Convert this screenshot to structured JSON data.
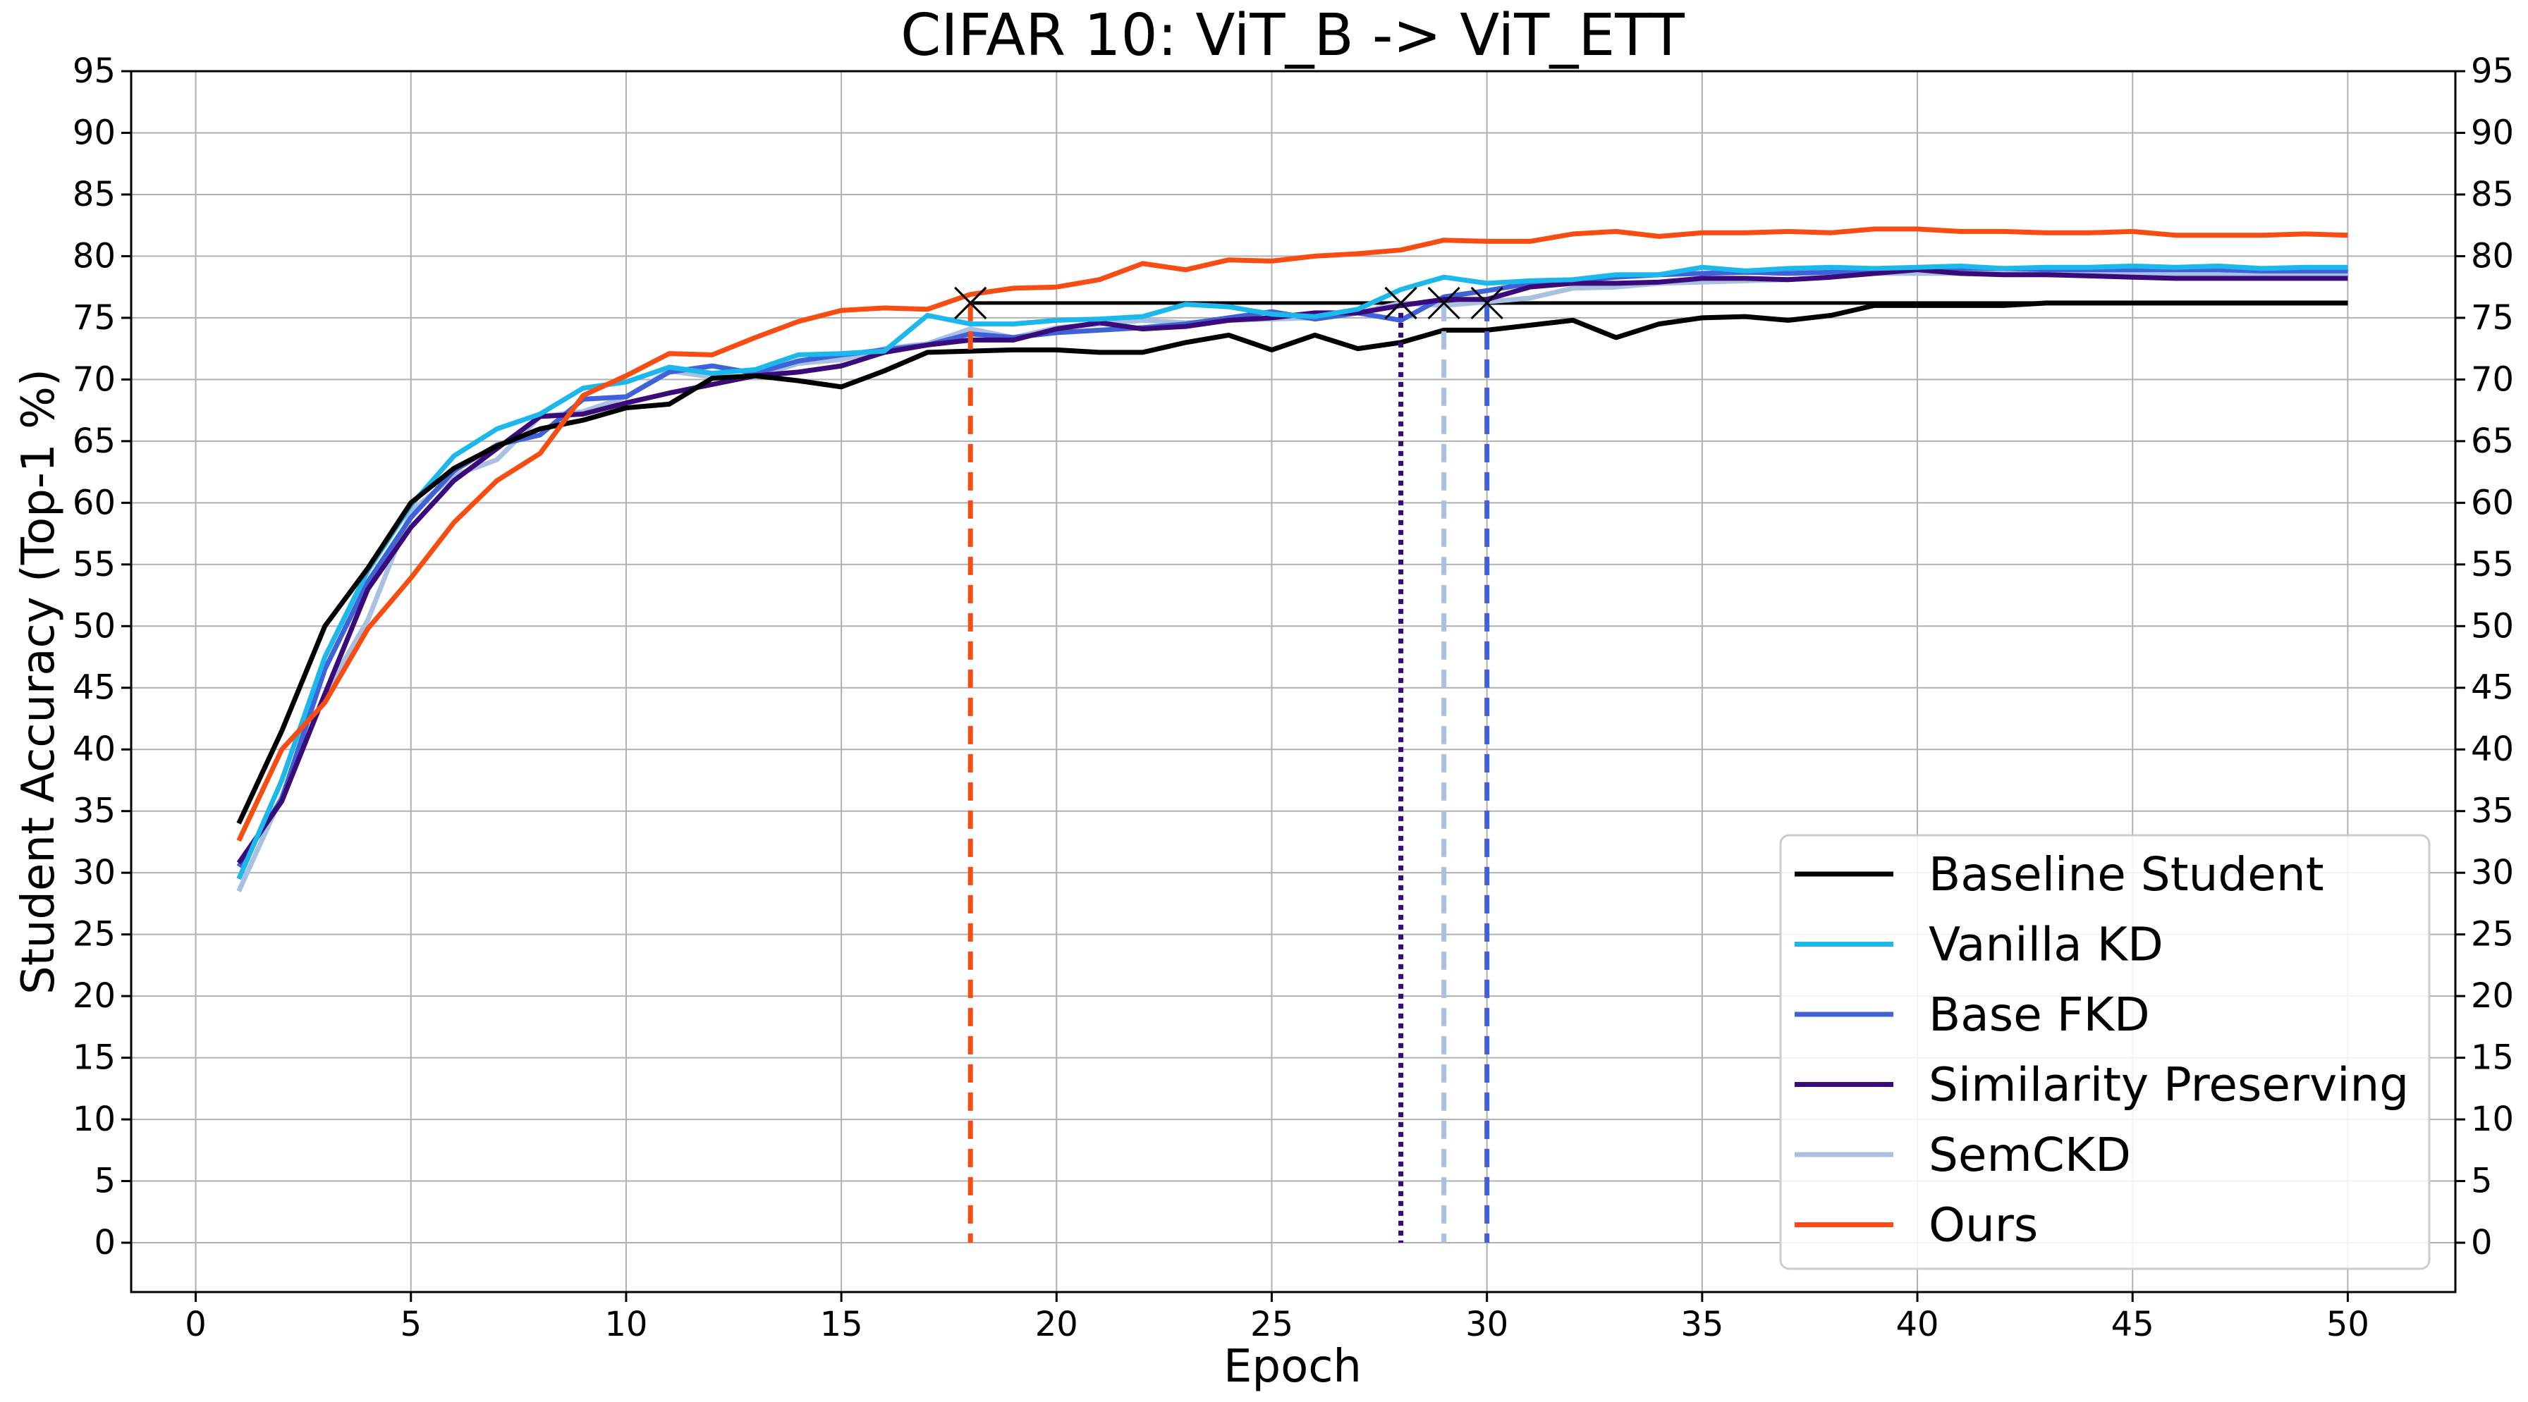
{
  "chart_data": {
    "type": "line",
    "title": "CIFAR 10: ViT_B -> ViT_ETT",
    "xlabel": "Epoch",
    "ylabel": "Student Accuracy (Top-1 %)",
    "xlim": [
      -1.5,
      52.5
    ],
    "ylim": [
      -4,
      95
    ],
    "xticks": [
      0,
      5,
      10,
      15,
      20,
      25,
      30,
      35,
      40,
      45,
      50
    ],
    "yticks": [
      0,
      5,
      10,
      15,
      20,
      25,
      30,
      35,
      40,
      45,
      50,
      55,
      60,
      65,
      70,
      75,
      80,
      85,
      90,
      95
    ],
    "grid": true,
    "legend_position": "lower-right",
    "series": [
      {
        "name": "Baseline Student",
        "color": "#000000",
        "x": [
          1,
          2,
          3,
          4,
          5,
          6,
          7,
          8,
          9,
          10,
          11,
          12,
          13,
          14,
          15,
          16,
          17,
          18,
          19,
          20,
          21,
          22,
          23,
          24,
          25,
          26,
          27,
          28,
          29,
          30,
          31,
          32,
          33,
          34,
          35,
          36,
          37,
          38,
          39,
          40,
          41,
          42,
          43,
          44,
          45,
          46,
          47,
          48,
          49,
          50
        ],
        "values": [
          34,
          41.5,
          50,
          54.7,
          60,
          62.8,
          64.6,
          66,
          66.7,
          67.7,
          68,
          70.1,
          70.3,
          69.9,
          69.4,
          70.7,
          72.2,
          72.3,
          72.4,
          72.4,
          72.2,
          72.2,
          73,
          73.6,
          72.4,
          73.6,
          72.5,
          73,
          74,
          74,
          74.4,
          74.8,
          73.4,
          74.5,
          75,
          75.1,
          74.8,
          75.2,
          76,
          76,
          76,
          76,
          76.2,
          76.2,
          76.2,
          76.2,
          76.2,
          76.2,
          76.2,
          76.2
        ]
      },
      {
        "name": "Vanilla KD",
        "color": "#1CB8EC",
        "x": [
          1,
          2,
          3,
          4,
          5,
          6,
          7,
          8,
          9,
          10,
          11,
          12,
          13,
          14,
          15,
          16,
          17,
          18,
          19,
          20,
          21,
          22,
          23,
          24,
          25,
          26,
          27,
          28,
          29,
          30,
          31,
          32,
          33,
          34,
          35,
          36,
          37,
          38,
          39,
          40,
          41,
          42,
          43,
          44,
          45,
          46,
          47,
          48,
          49,
          50
        ],
        "values": [
          29.5,
          37.5,
          47.5,
          54.5,
          59.8,
          63.8,
          66,
          67.2,
          69.3,
          69.8,
          71,
          70.5,
          70.8,
          72,
          72.1,
          72.3,
          75.2,
          74.5,
          74.5,
          74.8,
          74.9,
          75.1,
          76.1,
          75.9,
          75.3,
          75.1,
          75.7,
          77.3,
          78.3,
          77.8,
          78,
          78.1,
          78.5,
          78.5,
          79.1,
          78.8,
          79,
          79.1,
          79,
          79.1,
          79.2,
          79,
          79.1,
          79.1,
          79.2,
          79.1,
          79.2,
          79,
          79.1,
          79.1
        ]
      },
      {
        "name": "Base FKD",
        "color": "#3F62D8",
        "x": [
          1,
          2,
          3,
          4,
          5,
          6,
          7,
          8,
          9,
          10,
          11,
          12,
          13,
          14,
          15,
          16,
          17,
          18,
          19,
          20,
          21,
          22,
          23,
          24,
          25,
          26,
          27,
          28,
          29,
          30,
          31,
          32,
          33,
          34,
          35,
          36,
          37,
          38,
          39,
          40,
          41,
          42,
          43,
          44,
          45,
          46,
          47,
          48,
          49,
          50
        ],
        "values": [
          30.5,
          36,
          46.5,
          53.6,
          58.8,
          62.6,
          64.7,
          65.5,
          68.4,
          68.6,
          70.6,
          71.1,
          70.5,
          71.5,
          72,
          72.4,
          72.8,
          73.7,
          73.4,
          73.8,
          74,
          74.2,
          74.5,
          75,
          75.5,
          74.9,
          75.4,
          74.8,
          76.7,
          77.2,
          77.8,
          78,
          78.3,
          78.5,
          78.6,
          78.7,
          78.6,
          78.7,
          78.9,
          79,
          79,
          79,
          78.9,
          78.9,
          78.9,
          78.9,
          78.9,
          78.8,
          78.8,
          78.8
        ]
      },
      {
        "name": "Similarity Preserving",
        "color": "#3A0A7A",
        "x": [
          1,
          2,
          3,
          4,
          5,
          6,
          7,
          8,
          9,
          10,
          11,
          12,
          13,
          14,
          15,
          16,
          17,
          18,
          19,
          20,
          21,
          22,
          23,
          24,
          25,
          26,
          27,
          28,
          29,
          30,
          31,
          32,
          33,
          34,
          35,
          36,
          37,
          38,
          39,
          40,
          41,
          42,
          43,
          44,
          45,
          46,
          47,
          48,
          49,
          50
        ],
        "values": [
          30.8,
          35.8,
          44.5,
          53,
          58,
          61.8,
          64.4,
          67,
          67.2,
          68.1,
          68.9,
          69.6,
          70.3,
          70.6,
          71.1,
          72.2,
          72.8,
          73.2,
          73.2,
          74.1,
          74.6,
          74.1,
          74.3,
          74.8,
          75,
          75.4,
          75.4,
          76,
          76.5,
          76.5,
          77.5,
          77.8,
          77.8,
          77.9,
          78.2,
          78.2,
          78.1,
          78.3,
          78.6,
          78.9,
          78.6,
          78.5,
          78.5,
          78.4,
          78.3,
          78.2,
          78.2,
          78.2,
          78.2,
          78.2
        ]
      },
      {
        "name": "SemCKD",
        "color": "#A9C0E0",
        "x": [
          1,
          2,
          3,
          4,
          5,
          6,
          7,
          8,
          9,
          10,
          11,
          12,
          13,
          14,
          15,
          16,
          17,
          18,
          19,
          20,
          21,
          22,
          23,
          24,
          25,
          26,
          27,
          28,
          29,
          30,
          31,
          32,
          33,
          34,
          35,
          36,
          37,
          38,
          39,
          40,
          41,
          42,
          43,
          44,
          45,
          46,
          47,
          48,
          49,
          50
        ],
        "values": [
          28.5,
          36.2,
          44.5,
          50.5,
          59.3,
          62.2,
          63.5,
          67,
          67.4,
          68.6,
          70.7,
          70.2,
          70.2,
          71.3,
          71.6,
          72.5,
          72.9,
          74.1,
          73.4,
          74.2,
          74.5,
          74.8,
          74.6,
          74.8,
          74.9,
          75,
          75.4,
          76.2,
          76,
          76.3,
          76.6,
          77.4,
          77.5,
          77.8,
          77.9,
          78,
          78.1,
          78.3,
          78.6,
          78.6,
          78.6,
          78.6,
          78.5,
          78.5,
          78.5,
          78.5,
          78.5,
          78.5,
          78.5,
          78.5
        ]
      },
      {
        "name": "Ours",
        "color": "#F74D12",
        "x": [
          1,
          2,
          3,
          4,
          5,
          6,
          7,
          8,
          9,
          10,
          11,
          12,
          13,
          14,
          15,
          16,
          17,
          18,
          19,
          20,
          21,
          22,
          23,
          24,
          25,
          26,
          27,
          28,
          29,
          30,
          31,
          32,
          33,
          34,
          35,
          36,
          37,
          38,
          39,
          40,
          41,
          42,
          43,
          44,
          45,
          46,
          47,
          48,
          49,
          50
        ],
        "values": [
          32.6,
          40,
          43.8,
          49.8,
          53.9,
          58.4,
          61.8,
          64,
          68.7,
          70.3,
          72.1,
          72,
          73.4,
          74.7,
          75.6,
          75.8,
          75.7,
          76.9,
          77.4,
          77.5,
          78.1,
          79.4,
          78.9,
          79.7,
          79.6,
          80,
          80.2,
          80.5,
          81.3,
          81.2,
          81.2,
          81.8,
          82,
          81.6,
          81.9,
          81.9,
          82,
          81.9,
          82.2,
          82.2,
          82,
          82,
          81.9,
          81.9,
          82,
          81.7,
          81.7,
          81.7,
          81.8,
          81.7
        ]
      }
    ],
    "markers": [
      {
        "series": "Baseline Student",
        "x": 18,
        "y": 76.2,
        "line_style": "hline",
        "color": "#000000"
      },
      {
        "series": "Ours",
        "x": 18,
        "y": 76.2,
        "line_style": "dashed",
        "color": "#F74D12"
      },
      {
        "series": "Vanilla KD",
        "x": 28,
        "y": 76.2,
        "line_style": "dotted",
        "color": "#1CB8EC"
      },
      {
        "series": "Similarity Preserving",
        "x": 28,
        "y": 76.2,
        "line_style": "dotted",
        "color": "#3A0A7A"
      },
      {
        "series": "SemCKD",
        "x": 29,
        "y": 76.2,
        "line_style": "dashed",
        "color": "#A9C0E0"
      },
      {
        "series": "Base FKD",
        "x": 30,
        "y": 76.2,
        "line_style": "dashed",
        "color": "#3F62D8"
      }
    ]
  }
}
